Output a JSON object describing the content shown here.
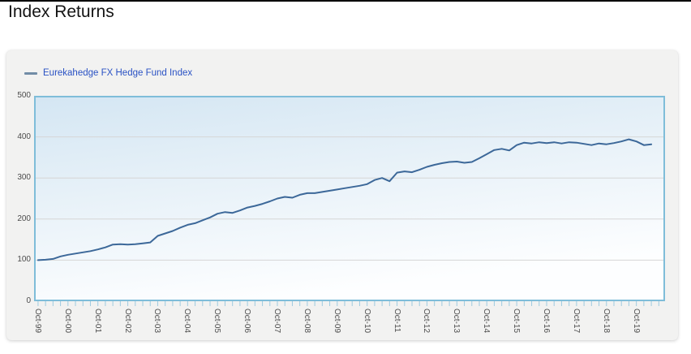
{
  "page": {
    "title": "Index Returns"
  },
  "legend": {
    "items": [
      {
        "label": "Eurekahedge FX Hedge Fund Index"
      }
    ]
  },
  "chart_data": {
    "type": "line",
    "title": "Index Returns",
    "xlabel": "",
    "ylabel": "",
    "ylim": [
      0,
      500
    ],
    "y_ticks": [
      0,
      100,
      200,
      300,
      400,
      500
    ],
    "xlim_months": [
      -1.6,
      251.5
    ],
    "x_tick_labels": [
      "Oct-99",
      "Oct-00",
      "Oct-01",
      "Oct-02",
      "Oct-03",
      "Oct-04",
      "Oct-05",
      "Oct-06",
      "Oct-07",
      "Oct-08",
      "Oct-09",
      "Oct-10",
      "Oct-11",
      "Oct-12",
      "Oct-13",
      "Oct-14",
      "Oct-15",
      "Oct-16",
      "Oct-17",
      "Oct-18",
      "Oct-19"
    ],
    "x_major_tick_interval_months": 12,
    "x_minor_tick_interval_months": 3,
    "grid": "horizontal-only",
    "legend_position": "top-left",
    "plot_background": "light-blue-to-white-gradient",
    "series": [
      {
        "name": "Eurekahedge FX Hedge Fund Index",
        "color": "#3c6899",
        "x_months_since_oct_1999": [
          0,
          3,
          6,
          9,
          12,
          15,
          18,
          21,
          24,
          27,
          30,
          33,
          36,
          39,
          42,
          45,
          48,
          51,
          54,
          57,
          60,
          63,
          66,
          69,
          72,
          75,
          78,
          81,
          84,
          87,
          90,
          93,
          96,
          99,
          102,
          105,
          108,
          111,
          114,
          117,
          120,
          123,
          126,
          129,
          132,
          135,
          138,
          141,
          144,
          147,
          150,
          153,
          156,
          159,
          162,
          165,
          168,
          171,
          174,
          177,
          180,
          183,
          186,
          189,
          192,
          195,
          198,
          201,
          204,
          207,
          210,
          213,
          216,
          219,
          222,
          225,
          228,
          231,
          234,
          237,
          240,
          243,
          246
        ],
        "values": [
          100,
          101,
          103,
          109,
          113,
          116,
          119,
          122,
          126,
          131,
          138,
          139,
          138,
          139,
          141,
          143,
          159,
          165,
          171,
          179,
          186,
          190,
          197,
          204,
          213,
          217,
          215,
          221,
          228,
          232,
          237,
          243,
          250,
          254,
          252,
          259,
          263,
          263,
          266,
          269,
          272,
          275,
          278,
          281,
          285,
          295,
          300,
          292,
          313,
          316,
          314,
          320,
          327,
          332,
          336,
          339,
          340,
          337,
          339,
          348,
          358,
          368,
          371,
          367,
          380,
          386,
          384,
          387,
          385,
          387,
          384,
          387,
          386,
          383,
          380,
          384,
          382,
          385,
          389,
          394,
          389,
          380,
          382
        ]
      }
    ]
  },
  "colors": {
    "line": "#3c6899",
    "plot_border": "#7fbdd9",
    "minor_tick": "#9fcbe0",
    "gridline": "#d6d6d6",
    "axis_text": "#4b4b4b",
    "legend_text": "#2a52c4",
    "legend_marker": "#718ca6",
    "panel_background": "#f2f2f1",
    "top_bar": "#000000"
  }
}
